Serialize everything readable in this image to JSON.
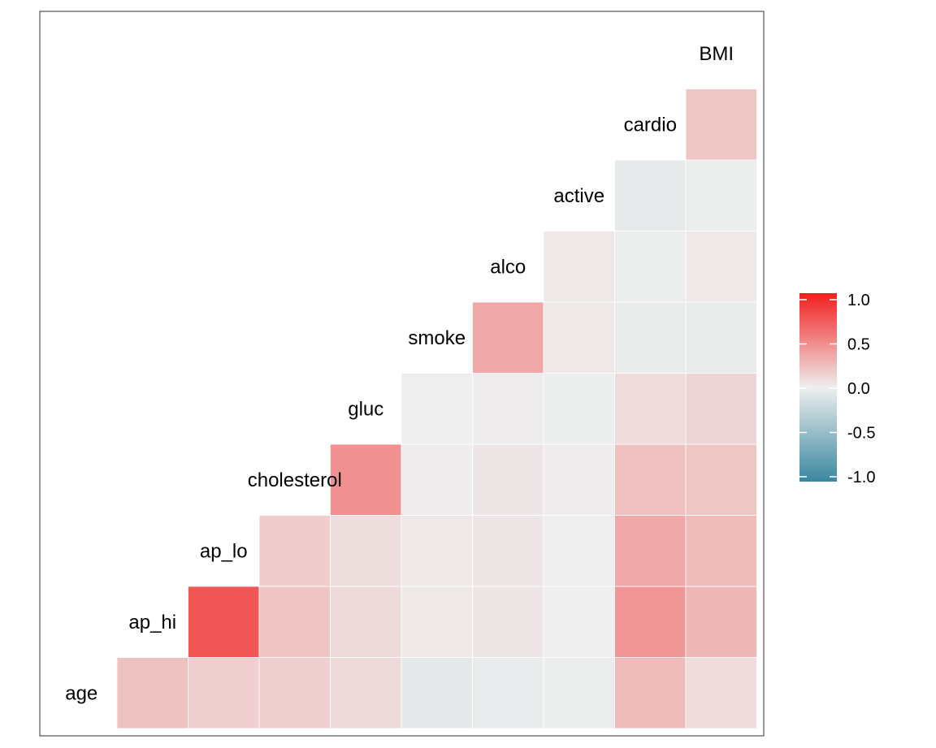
{
  "chart_data": {
    "type": "heatmap",
    "variables": [
      "age",
      "ap_hi",
      "ap_lo",
      "cholesterol",
      "gluc",
      "smoke",
      "alco",
      "active",
      "cardio",
      "BMI"
    ],
    "correlations": [
      [
        "age",
        "ap_hi",
        0.21
      ],
      [
        "age",
        "ap_lo",
        0.15
      ],
      [
        "age",
        "cholesterol",
        0.15
      ],
      [
        "age",
        "gluc",
        0.1
      ],
      [
        "age",
        "smoke",
        -0.05
      ],
      [
        "age",
        "alco",
        -0.03
      ],
      [
        "age",
        "active",
        -0.01
      ],
      [
        "age",
        "cardio",
        0.24
      ],
      [
        "age",
        "BMI",
        0.09
      ],
      [
        "ap_hi",
        "ap_lo",
        0.73
      ],
      [
        "ap_hi",
        "cholesterol",
        0.2
      ],
      [
        "ap_hi",
        "gluc",
        0.1
      ],
      [
        "ap_hi",
        "smoke",
        0.03
      ],
      [
        "ap_hi",
        "alco",
        0.04
      ],
      [
        "ap_hi",
        "active",
        0.0
      ],
      [
        "ap_hi",
        "cardio",
        0.43
      ],
      [
        "ap_hi",
        "BMI",
        0.27
      ],
      [
        "ap_lo",
        "cholesterol",
        0.16
      ],
      [
        "ap_lo",
        "gluc",
        0.08
      ],
      [
        "ap_lo",
        "smoke",
        0.03
      ],
      [
        "ap_lo",
        "alco",
        0.04
      ],
      [
        "ap_lo",
        "active",
        0.0
      ],
      [
        "ap_lo",
        "cardio",
        0.34
      ],
      [
        "ap_lo",
        "BMI",
        0.24
      ],
      [
        "cholesterol",
        "gluc",
        0.45
      ],
      [
        "cholesterol",
        "smoke",
        0.01
      ],
      [
        "cholesterol",
        "alco",
        0.04
      ],
      [
        "cholesterol",
        "active",
        0.01
      ],
      [
        "cholesterol",
        "cardio",
        0.22
      ],
      [
        "cholesterol",
        "BMI",
        0.19
      ],
      [
        "gluc",
        "smoke",
        0.0
      ],
      [
        "gluc",
        "alco",
        0.01
      ],
      [
        "gluc",
        "active",
        -0.01
      ],
      [
        "gluc",
        "cardio",
        0.09
      ],
      [
        "gluc",
        "BMI",
        0.12
      ],
      [
        "smoke",
        "alco",
        0.34
      ],
      [
        "smoke",
        "active",
        0.03
      ],
      [
        "smoke",
        "cardio",
        -0.02
      ],
      [
        "smoke",
        "BMI",
        -0.02
      ],
      [
        "alco",
        "active",
        0.03
      ],
      [
        "alco",
        "cardio",
        -0.01
      ],
      [
        "alco",
        "BMI",
        0.03
      ],
      [
        "active",
        "cardio",
        -0.04
      ],
      [
        "active",
        "BMI",
        -0.01
      ],
      [
        "cardio",
        "BMI",
        0.19
      ]
    ],
    "legend": {
      "position": "right",
      "ticks": [
        "1.0",
        "0.5",
        "0.0",
        "-0.5",
        "-1.0"
      ],
      "range": [
        -1,
        1
      ],
      "colors": {
        "low": "#3a87a0",
        "mid": "#eeeeee",
        "high": "#f21e1e"
      }
    },
    "title": "",
    "xlabel": "",
    "ylabel": ""
  }
}
